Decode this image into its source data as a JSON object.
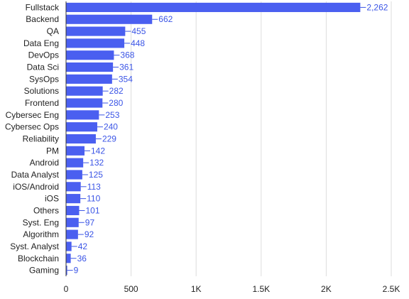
{
  "chart_data": {
    "type": "bar",
    "orientation": "horizontal",
    "title": "",
    "xlabel": "",
    "ylabel": "",
    "xlim": [
      0,
      2500
    ],
    "grid": true,
    "legend": "none",
    "bar_color": "#4a5ff0",
    "label_color": "#3b55e6",
    "categories": [
      "Fullstack",
      "Backend",
      "QA",
      "Data Eng",
      "DevOps",
      "Data Sci",
      "SysOps",
      "Solutions",
      "Frontend",
      "Cybersec Eng",
      "Cybersec Ops",
      "Reliability",
      "PM",
      "Android",
      "Data Analyst",
      "iOS/Android",
      "iOS",
      "Others",
      "Syst. Eng",
      "Algorithm",
      "Syst. Analyst",
      "Blockchain",
      "Gaming"
    ],
    "values": [
      2262,
      662,
      455,
      448,
      368,
      361,
      354,
      282,
      280,
      253,
      240,
      229,
      142,
      132,
      125,
      113,
      110,
      101,
      97,
      92,
      42,
      36,
      9
    ],
    "value_labels": [
      "2,262",
      "662",
      "455",
      "448",
      "368",
      "361",
      "354",
      "282",
      "280",
      "253",
      "240",
      "229",
      "142",
      "132",
      "125",
      "113",
      "110",
      "101",
      "97",
      "92",
      "42",
      "36",
      "9"
    ],
    "x_ticks": [
      0,
      500,
      1000,
      1500,
      2000,
      2500
    ],
    "x_tick_labels": [
      "0",
      "500",
      "1K",
      "1.5K",
      "2K",
      "2.5K"
    ]
  }
}
